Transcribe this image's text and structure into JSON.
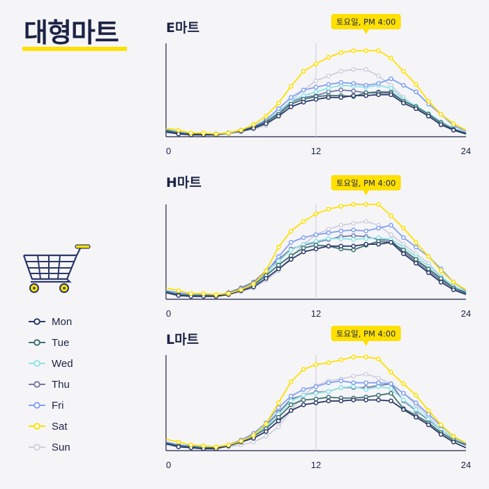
{
  "title": "대형마트",
  "colors": {
    "Mon": "#2b3868",
    "Tue": "#3d7170",
    "Wed": "#8ee2e6",
    "Thu": "#7379a6",
    "Fri": "#82a0f2",
    "Sat": "#ffe000",
    "Sun": "#cdd0dd",
    "accent": "#ffe000",
    "text": "#1c2345"
  },
  "legend": [
    "Mon",
    "Tue",
    "Wed",
    "Thu",
    "Fri",
    "Sat",
    "Sun"
  ],
  "cart_icon": "shopping-cart-icon",
  "chart_data": [
    {
      "type": "line",
      "title": "E마트",
      "tooltip": "토요일, PM 4:00",
      "xticks": [
        0,
        12,
        24
      ],
      "xlim": [
        0,
        24
      ],
      "ylim": [
        0,
        100
      ],
      "grid": "vertical at 12",
      "x": [
        0,
        1,
        2,
        3,
        4,
        5,
        6,
        7,
        8,
        9,
        10,
        11,
        12,
        13,
        14,
        15,
        16,
        17,
        18,
        19,
        20,
        21,
        22,
        23,
        24
      ],
      "series": [
        {
          "name": "Mon",
          "values": [
            5,
            3,
            2,
            2,
            2,
            4,
            6,
            9,
            14,
            22,
            32,
            37,
            40,
            42,
            42,
            44,
            44,
            45,
            45,
            36,
            30,
            22,
            13,
            7,
            3
          ]
        },
        {
          "name": "Tue",
          "values": [
            7,
            4,
            3,
            3,
            3,
            4,
            7,
            10,
            16,
            24,
            35,
            40,
            43,
            44,
            44,
            43,
            47,
            47,
            47,
            38,
            32,
            24,
            15,
            8,
            4
          ]
        },
        {
          "name": "Wed",
          "values": [
            8,
            5,
            3,
            3,
            3,
            4,
            7,
            11,
            17,
            27,
            38,
            44,
            48,
            52,
            55,
            54,
            53,
            55,
            52,
            40,
            33,
            25,
            16,
            9,
            4
          ]
        },
        {
          "name": "Thu",
          "values": [
            6,
            4,
            3,
            3,
            3,
            4,
            6,
            10,
            15,
            26,
            37,
            42,
            44,
            48,
            50,
            49,
            47,
            48,
            48,
            38,
            32,
            24,
            15,
            8,
            3
          ]
        },
        {
          "name": "Fri",
          "values": [
            7,
            5,
            3,
            3,
            3,
            4,
            7,
            11,
            18,
            30,
            42,
            50,
            53,
            56,
            58,
            57,
            55,
            57,
            62,
            55,
            48,
            35,
            24,
            12,
            6
          ]
        },
        {
          "name": "Sat",
          "values": [
            9,
            7,
            4,
            4,
            3,
            4,
            7,
            13,
            22,
            36,
            54,
            70,
            78,
            85,
            90,
            92,
            92,
            92,
            84,
            70,
            56,
            38,
            24,
            14,
            7
          ]
        },
        {
          "name": "Sun",
          "values": [
            6,
            4,
            3,
            3,
            2,
            3,
            5,
            8,
            12,
            22,
            38,
            50,
            60,
            65,
            70,
            72,
            72,
            65,
            55,
            42,
            32,
            22,
            12,
            8,
            4
          ]
        }
      ]
    },
    {
      "type": "line",
      "title": "H마트",
      "tooltip": "토요일, PM 4:00",
      "xticks": [
        0,
        12,
        24
      ],
      "xlim": [
        0,
        24
      ],
      "ylim": [
        0,
        100
      ],
      "grid": "vertical at 12",
      "x": [
        0,
        1,
        2,
        3,
        4,
        5,
        6,
        7,
        8,
        9,
        10,
        11,
        12,
        13,
        14,
        15,
        16,
        17,
        18,
        19,
        20,
        21,
        22,
        23,
        24
      ],
      "series": [
        {
          "name": "Mon",
          "values": [
            7,
            4,
            3,
            3,
            3,
            5,
            9,
            13,
            22,
            32,
            42,
            50,
            53,
            56,
            56,
            56,
            58,
            58,
            60,
            48,
            38,
            28,
            18,
            10,
            5
          ]
        },
        {
          "name": "Tue",
          "values": [
            8,
            5,
            4,
            4,
            4,
            6,
            10,
            15,
            25,
            36,
            46,
            54,
            57,
            56,
            53,
            52,
            57,
            61,
            60,
            52,
            42,
            32,
            22,
            12,
            7
          ]
        },
        {
          "name": "Wed",
          "values": [
            9,
            6,
            4,
            4,
            4,
            6,
            11,
            16,
            27,
            40,
            52,
            58,
            61,
            64,
            64,
            63,
            64,
            65,
            63,
            55,
            45,
            35,
            24,
            14,
            8
          ]
        },
        {
          "name": "Thu",
          "values": [
            8,
            6,
            4,
            4,
            4,
            7,
            12,
            18,
            30,
            42,
            53,
            57,
            60,
            63,
            66,
            67,
            66,
            63,
            62,
            50,
            40,
            30,
            20,
            12,
            6
          ]
        },
        {
          "name": "Fri",
          "values": [
            9,
            7,
            5,
            5,
            4,
            6,
            11,
            17,
            28,
            45,
            60,
            65,
            68,
            70,
            72,
            73,
            72,
            75,
            78,
            65,
            55,
            45,
            32,
            18,
            9
          ]
        },
        {
          "name": "Sat",
          "values": [
            12,
            9,
            6,
            6,
            5,
            6,
            10,
            16,
            30,
            55,
            72,
            82,
            90,
            95,
            98,
            100,
            100,
            100,
            88,
            75,
            60,
            45,
            30,
            18,
            10
          ]
        },
        {
          "name": "Sun",
          "values": [
            9,
            6,
            5,
            5,
            4,
            5,
            8,
            12,
            20,
            30,
            45,
            58,
            68,
            74,
            78,
            80,
            82,
            78,
            68,
            58,
            48,
            38,
            24,
            12,
            6
          ]
        }
      ]
    },
    {
      "type": "line",
      "title": "L마트",
      "tooltip": "토요일, PM 4:00",
      "xticks": [
        0,
        12,
        24
      ],
      "xlim": [
        0,
        24
      ],
      "ylim": [
        0,
        100
      ],
      "grid": "vertical at 12",
      "x": [
        0,
        1,
        2,
        3,
        4,
        5,
        6,
        7,
        8,
        9,
        10,
        11,
        12,
        13,
        14,
        15,
        16,
        17,
        18,
        19,
        20,
        21,
        22,
        23,
        24
      ],
      "series": [
        {
          "name": "Mon",
          "values": [
            7,
            4,
            3,
            2,
            2,
            5,
            9,
            13,
            20,
            31,
            42,
            48,
            50,
            52,
            52,
            53,
            53,
            53,
            52,
            43,
            35,
            27,
            17,
            9,
            3
          ]
        },
        {
          "name": "Tue",
          "values": [
            8,
            5,
            4,
            3,
            3,
            5,
            10,
            15,
            23,
            35,
            48,
            53,
            54,
            56,
            55,
            55,
            56,
            58,
            60,
            44,
            37,
            29,
            19,
            11,
            6
          ]
        },
        {
          "name": "Wed",
          "values": [
            9,
            6,
            4,
            4,
            3,
            5,
            10,
            16,
            25,
            38,
            52,
            58,
            60,
            62,
            66,
            67,
            64,
            67,
            65,
            53,
            43,
            33,
            22,
            13,
            7
          ]
        },
        {
          "name": "Thu",
          "values": [
            8,
            5,
            4,
            4,
            3,
            6,
            11,
            17,
            27,
            40,
            54,
            58,
            61,
            62,
            66,
            66,
            66,
            68,
            70,
            52,
            42,
            32,
            22,
            13,
            7
          ]
        },
        {
          "name": "Fri",
          "values": [
            9,
            6,
            5,
            5,
            4,
            6,
            11,
            18,
            29,
            45,
            57,
            64,
            67,
            71,
            73,
            71,
            71,
            71,
            70,
            60,
            50,
            38,
            26,
            15,
            7
          ]
        },
        {
          "name": "Sat",
          "values": [
            12,
            9,
            6,
            5,
            4,
            6,
            10,
            16,
            28,
            50,
            72,
            85,
            90,
            92,
            95,
            98,
            98,
            96,
            82,
            70,
            58,
            42,
            27,
            15,
            8
          ]
        },
        {
          "name": "Sun",
          "values": [
            8,
            6,
            5,
            4,
            3,
            4,
            6,
            9,
            15,
            25,
            42,
            58,
            68,
            73,
            75,
            78,
            80,
            76,
            70,
            60,
            48,
            35,
            22,
            12,
            5
          ]
        }
      ]
    }
  ]
}
